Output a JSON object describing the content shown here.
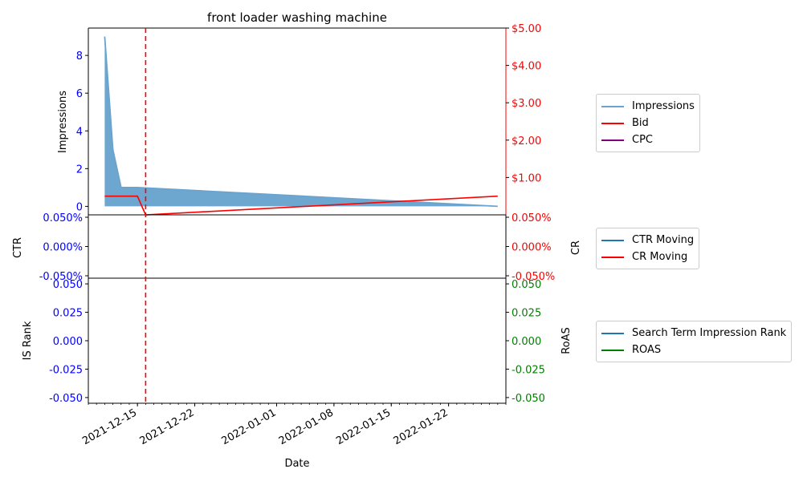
{
  "chart_data": [
    {
      "panel": "top",
      "type": "line",
      "title": "front loader washing machine",
      "ylabel": "Impressions",
      "ylabel_right": "",
      "ylim": [
        -0.45,
        9.45
      ],
      "ylim_right": [
        0.0,
        5.0
      ],
      "xlim": [
        "2021-12-09",
        "2022-01-29"
      ],
      "yticks": [
        0,
        2,
        4,
        6,
        8
      ],
      "yticks_right": [
        "$1.00",
        "$2.00",
        "$3.00",
        "$4.00",
        "$5.00"
      ],
      "yticks_right_values": [
        1,
        2,
        3,
        4,
        5
      ],
      "series": [
        {
          "name": "Impressions",
          "color": "#6aa3d0",
          "fill": true,
          "axis": "left",
          "points": [
            [
              "2021-12-11",
              9
            ],
            [
              "2021-12-12",
              3
            ],
            [
              "2021-12-13",
              1
            ],
            [
              "2021-12-15",
              1
            ],
            [
              "2022-01-28",
              0
            ]
          ]
        },
        {
          "name": "Bid",
          "color": "#ff0000",
          "axis": "right",
          "points": [
            [
              "2021-12-11",
              0.5
            ],
            [
              "2021-12-15",
              0.5
            ],
            [
              "2021-12-16",
              0.0
            ],
            [
              "2022-01-28",
              0.5
            ]
          ]
        },
        {
          "name": "CPC",
          "color": "#800080",
          "axis": "right",
          "points": []
        }
      ],
      "vline": {
        "x": "2021-12-16",
        "color": "#ff0000",
        "style": "dashed"
      }
    },
    {
      "panel": "middle",
      "type": "line",
      "ylabel": "CTR",
      "ylabel_right": "CR",
      "ylim": [
        -0.05,
        0.05
      ],
      "yticks": [
        "-0.050%",
        "0.000%",
        "0.050%"
      ],
      "yticks_right": [
        "-0.050%",
        "0.000%",
        "0.050%"
      ],
      "series": [
        {
          "name": "CTR Moving",
          "color": "#1f77b4",
          "points": []
        },
        {
          "name": "CR Moving",
          "color": "#ff0000",
          "points": []
        }
      ]
    },
    {
      "panel": "bottom",
      "type": "line",
      "ylabel": "IS Rank",
      "ylabel_right": "RoAS",
      "xlabel": "Date",
      "ylim": [
        -0.055,
        0.055
      ],
      "yticks": [
        "-0.050",
        "-0.025",
        "0.000",
        "0.025",
        "0.050"
      ],
      "yticks_right": [
        "-0.050",
        "-0.025",
        "0.000",
        "0.025",
        "0.050"
      ],
      "xticks": [
        "2021-12-15",
        "2021-12-22",
        "2022-01-01",
        "2022-01-08",
        "2022-01-15",
        "2022-01-22"
      ],
      "series": [
        {
          "name": "Search Term Impression Rank",
          "color": "#1f77b4",
          "points": []
        },
        {
          "name": "ROAS",
          "color": "#008000",
          "points": []
        }
      ]
    }
  ],
  "colors": {
    "left_tick": "#0000ff",
    "red_tick": "#ff0000",
    "green_tick": "#008000",
    "vline": "#ff0000"
  }
}
